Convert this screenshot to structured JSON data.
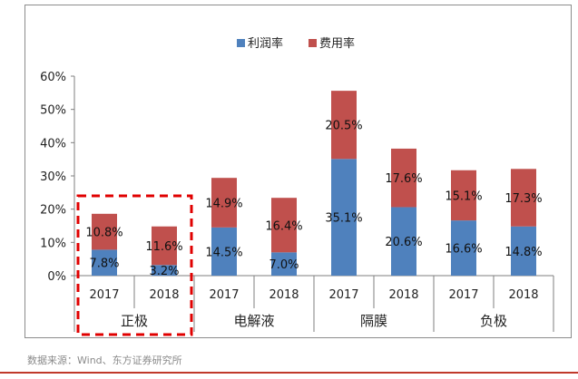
{
  "chart_data": {
    "type": "bar",
    "stacked": true,
    "legend": {
      "position": "top",
      "items": [
        "利润率",
        "费用率"
      ]
    },
    "colors": {
      "profit": "#4f81bd",
      "expense": "#c0504d",
      "highlight": "#e00000"
    },
    "y_ticks": [
      "0%",
      "10%",
      "20%",
      "30%",
      "40%",
      "50%",
      "60%"
    ],
    "ylim": [
      0,
      60
    ],
    "grid": false,
    "groups": [
      {
        "name": "正极",
        "years": [
          "2017",
          "2018"
        ]
      },
      {
        "name": "电解液",
        "years": [
          "2017",
          "2018"
        ]
      },
      {
        "name": "隔膜",
        "years": [
          "2017",
          "2018"
        ]
      },
      {
        "name": "负极",
        "years": [
          "2017",
          "2018"
        ]
      }
    ],
    "series": [
      {
        "name": "利润率",
        "values": [
          7.8,
          3.2,
          14.5,
          7.0,
          35.1,
          20.6,
          16.6,
          14.8
        ],
        "labels": [
          "7.8%",
          "3.2%",
          "14.5%",
          "7.0%",
          "35.1%",
          "20.6%",
          "16.6%",
          "14.8%"
        ]
      },
      {
        "name": "费用率",
        "values": [
          10.8,
          11.6,
          14.9,
          16.4,
          20.5,
          17.6,
          15.1,
          17.3
        ],
        "labels": [
          "10.8%",
          "11.6%",
          "14.9%",
          "16.4%",
          "20.5%",
          "17.6%",
          "15.1%",
          "17.3%"
        ]
      }
    ],
    "highlighted_group": "正极"
  },
  "source": "数据来源：Wind、东方证券研究所"
}
